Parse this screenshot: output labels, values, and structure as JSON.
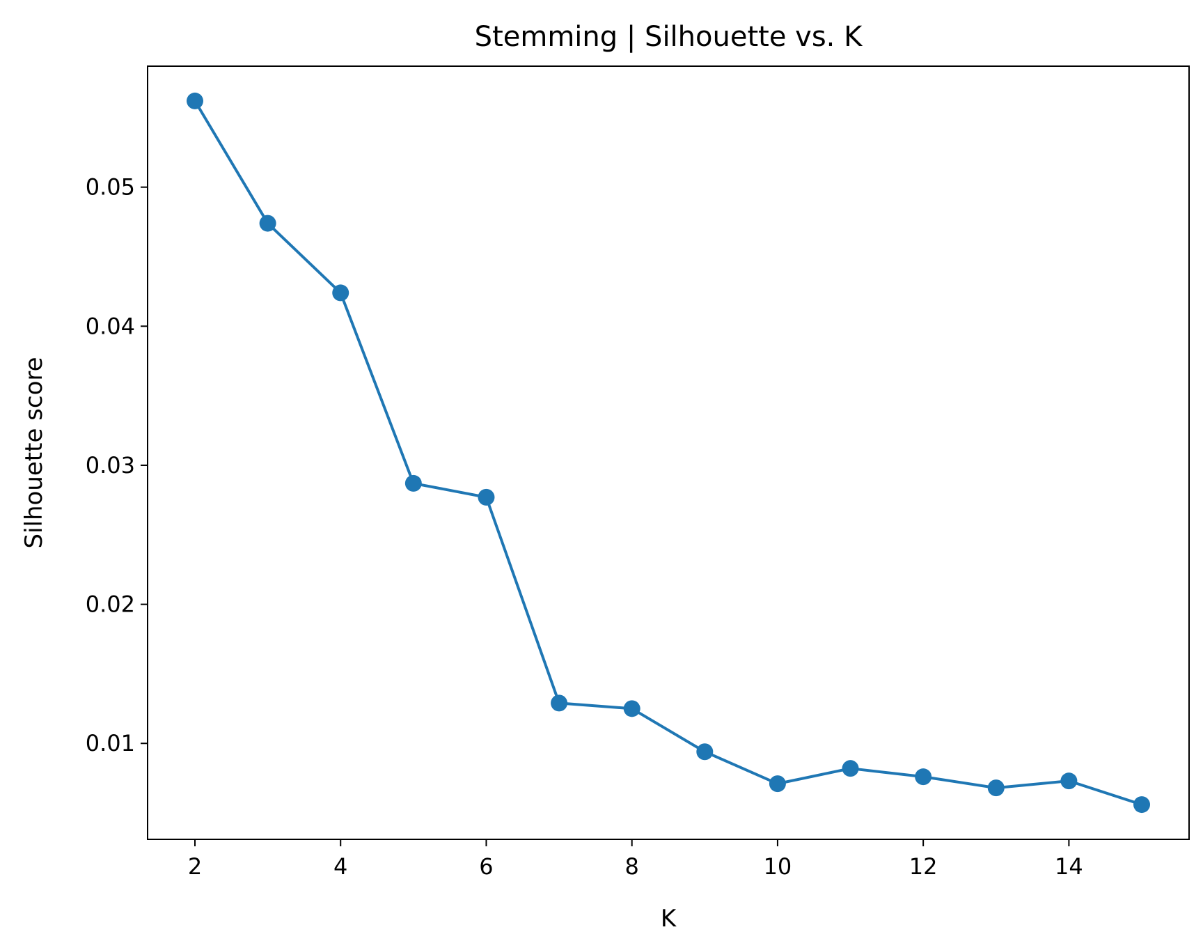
{
  "chart_data": {
    "type": "line",
    "title": "Stemming | Silhouette vs. K",
    "xlabel": "K",
    "ylabel": "Silhouette score",
    "x": [
      2,
      3,
      4,
      5,
      6,
      7,
      8,
      9,
      10,
      11,
      12,
      13,
      14,
      15
    ],
    "series": [
      {
        "values": [
          0.0562,
          0.0474,
          0.0424,
          0.0287,
          0.0277,
          0.0129,
          0.0125,
          0.0094,
          0.0071,
          0.0082,
          0.0076,
          0.0068,
          0.0073,
          0.0056
        ],
        "color": "#1f77b4",
        "marker": "circle"
      }
    ],
    "xticks": [
      2,
      4,
      6,
      8,
      10,
      12,
      14
    ],
    "xtick_labels": [
      "2",
      "4",
      "6",
      "8",
      "10",
      "12",
      "14"
    ],
    "yticks": [
      0.01,
      0.02,
      0.03,
      0.04,
      0.05
    ],
    "ytick_labels": [
      "0.01",
      "0.02",
      "0.03",
      "0.04",
      "0.05"
    ],
    "xlim": [
      1.35,
      15.65
    ],
    "ylim": [
      0.0031,
      0.0587
    ],
    "grid": false,
    "legend": "none"
  }
}
